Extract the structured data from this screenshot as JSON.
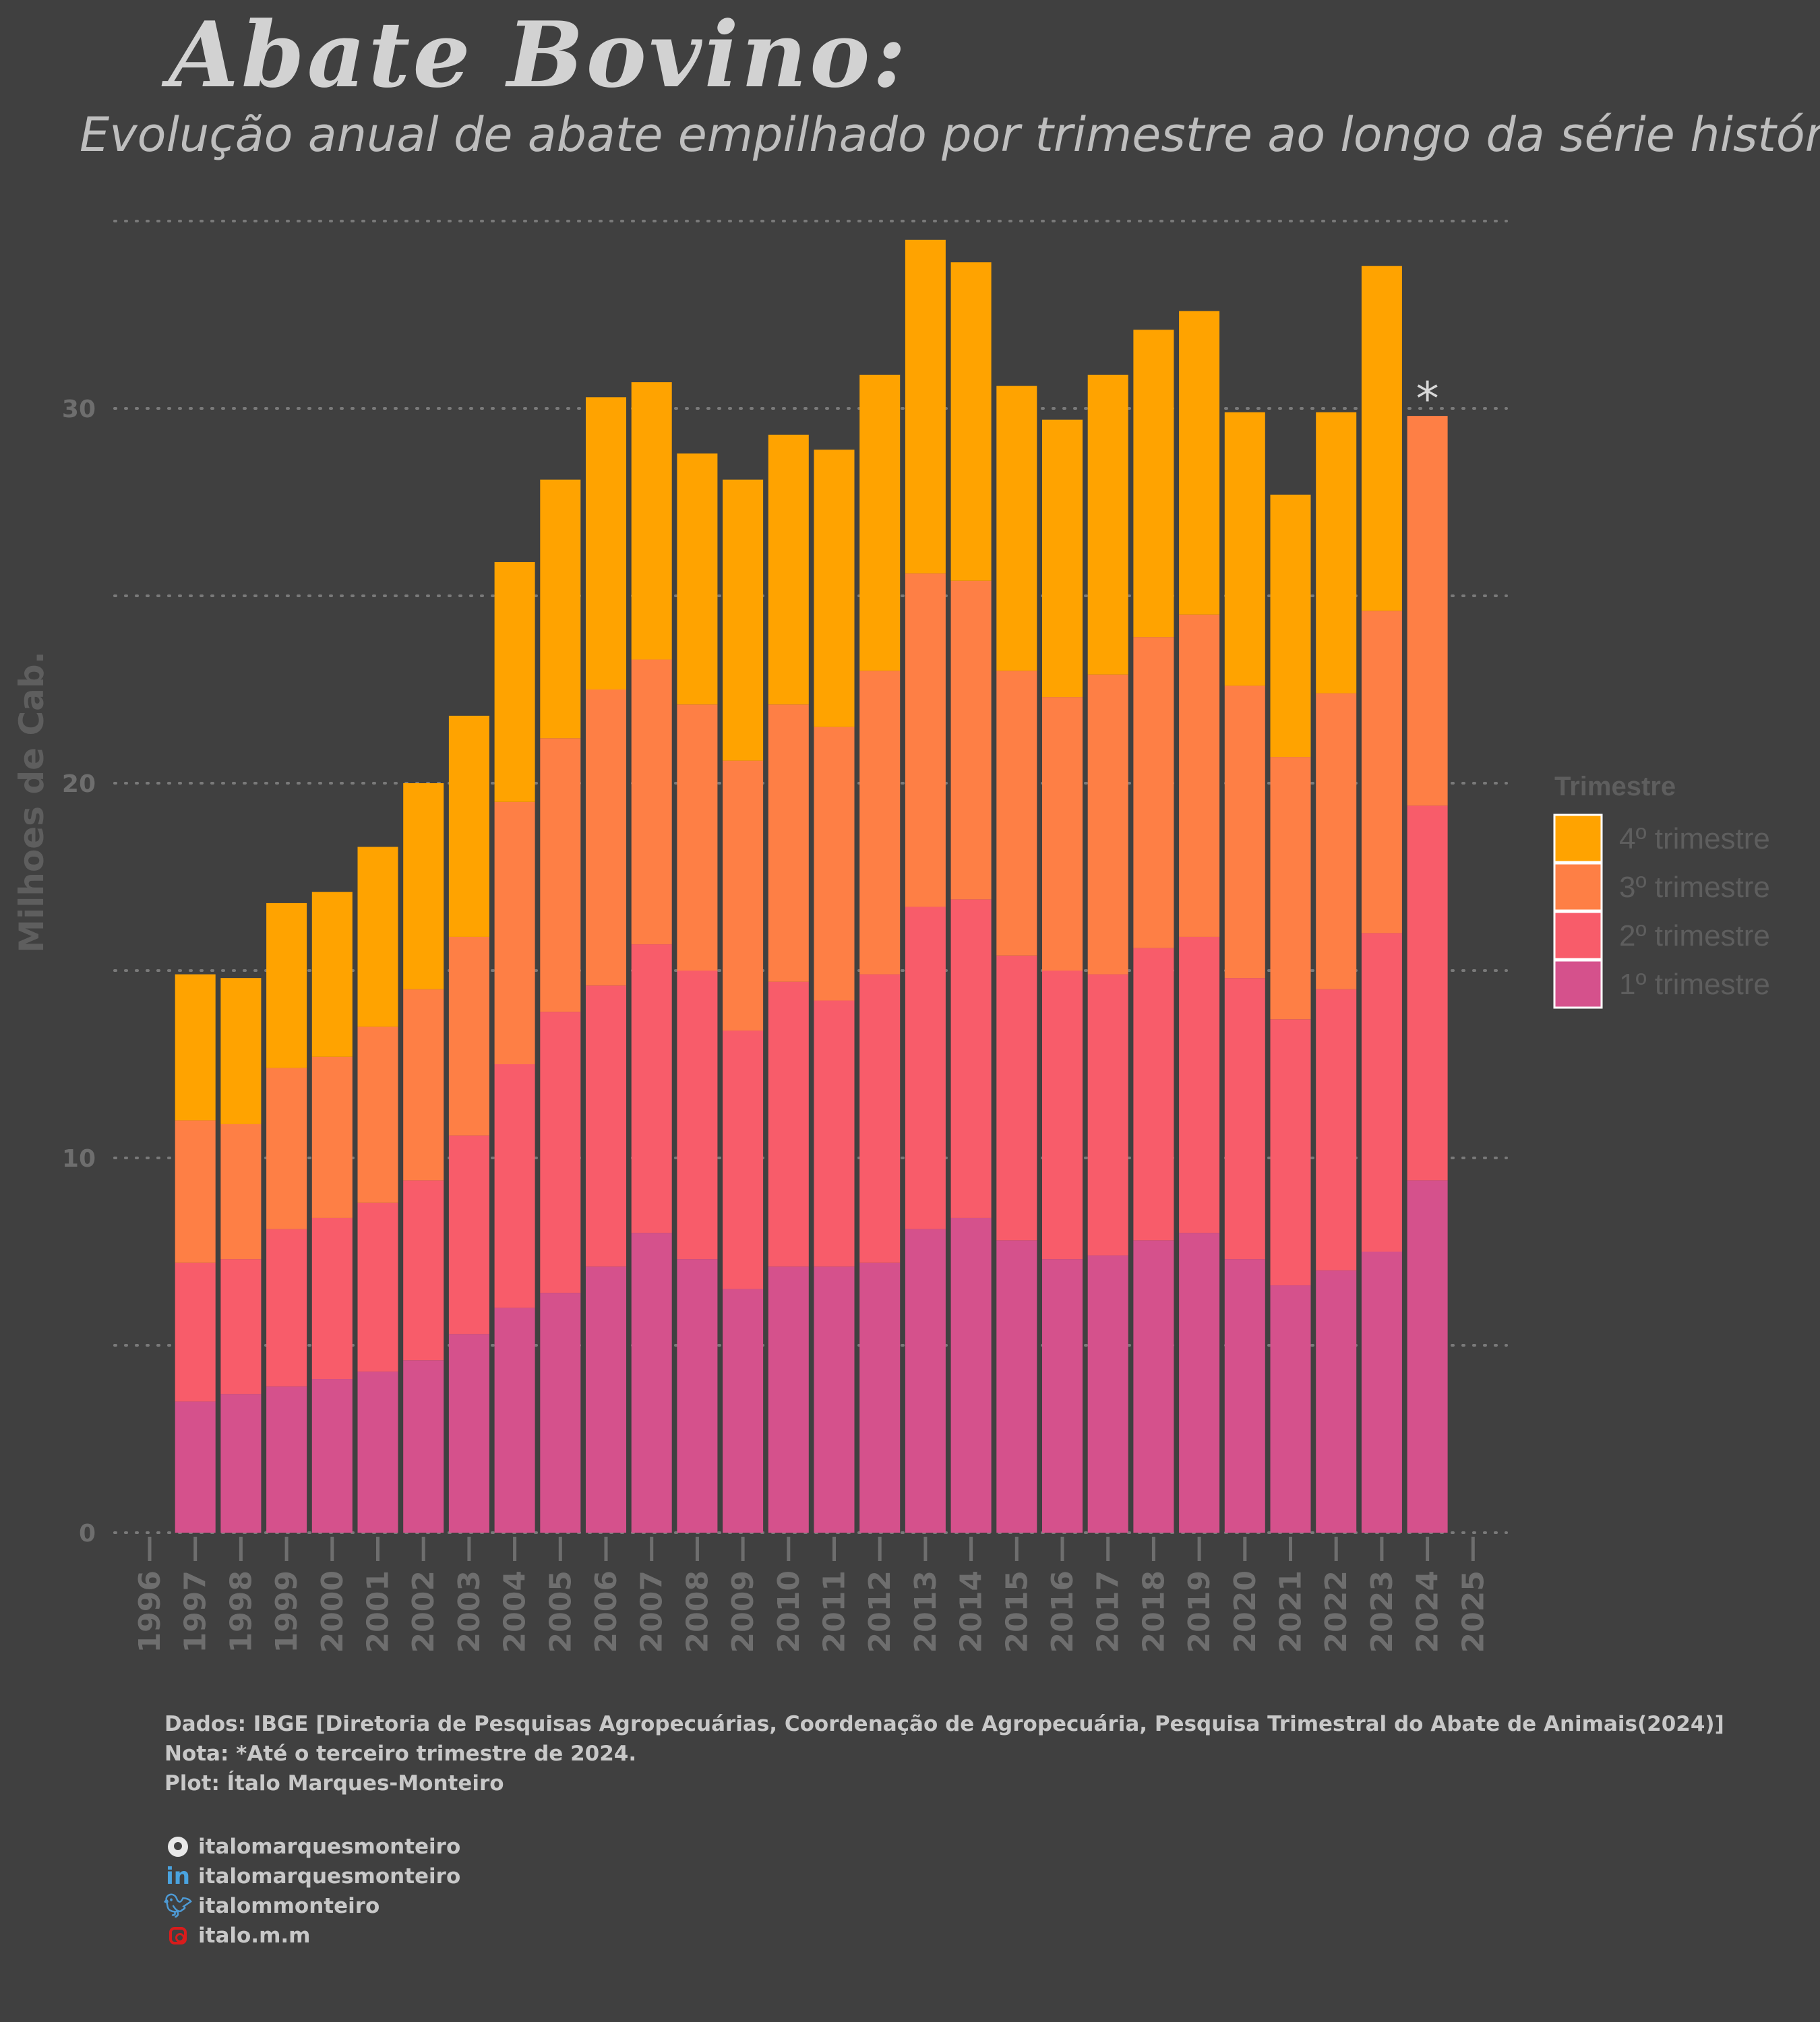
{
  "header": {
    "title": "Abate Bovino:",
    "subtitle": "Evolução anual de abate empilhado por trimestre ao longo da série histórica"
  },
  "chart_data": {
    "type": "bar",
    "stacked": true,
    "ylabel": "Milhoes de Cab.",
    "xlabel": "",
    "ylim": [
      0,
      35
    ],
    "yticks": [
      0,
      10,
      20,
      30
    ],
    "xlim": [
      1996,
      2025
    ],
    "xticks": [
      "1996",
      "1997",
      "1998",
      "1999",
      "2000",
      "2001",
      "2002",
      "2003",
      "2004",
      "2005",
      "2006",
      "2007",
      "2008",
      "2009",
      "2010",
      "2011",
      "2012",
      "2013",
      "2014",
      "2015",
      "2016",
      "2017",
      "2018",
      "2019",
      "2020",
      "2021",
      "2022",
      "2023",
      "2024",
      "2025"
    ],
    "grid": true,
    "legend": {
      "title": "Trimestre",
      "placement": "right"
    },
    "categories": [
      "1997",
      "1998",
      "1999",
      "2000",
      "2001",
      "2002",
      "2003",
      "2004",
      "2005",
      "2006",
      "2007",
      "2008",
      "2009",
      "2010",
      "2011",
      "2012",
      "2013",
      "2014",
      "2015",
      "2016",
      "2017",
      "2018",
      "2019",
      "2020",
      "2021",
      "2022",
      "2023",
      "2024"
    ],
    "series": [
      {
        "name": "1º trimestre",
        "color": "#d5518c",
        "values": [
          3.5,
          3.7,
          3.9,
          4.1,
          4.3,
          4.6,
          5.3,
          6.0,
          6.4,
          7.1,
          8.0,
          7.3,
          6.5,
          7.1,
          7.1,
          7.2,
          8.1,
          8.4,
          7.8,
          7.3,
          7.4,
          7.8,
          8.0,
          7.3,
          6.6,
          7.0,
          7.5,
          9.4
        ]
      },
      {
        "name": "2º trimestre",
        "color": "#f85c6a",
        "values": [
          3.7,
          3.6,
          4.2,
          4.3,
          4.5,
          4.8,
          5.3,
          6.5,
          7.5,
          7.5,
          7.7,
          7.7,
          6.9,
          7.6,
          7.1,
          7.7,
          8.6,
          8.5,
          7.6,
          7.7,
          7.5,
          7.8,
          7.9,
          7.5,
          7.1,
          7.5,
          8.5,
          10.0
        ]
      },
      {
        "name": "3º trimestre",
        "color": "#fe7f45",
        "values": [
          3.8,
          3.6,
          4.3,
          4.3,
          4.7,
          5.1,
          5.3,
          7.0,
          7.3,
          7.9,
          7.6,
          7.1,
          7.2,
          7.4,
          7.3,
          8.1,
          8.9,
          8.5,
          7.6,
          7.3,
          8.0,
          8.3,
          8.6,
          7.8,
          7.0,
          7.9,
          8.6,
          10.4
        ]
      },
      {
        "name": "4º trimestre",
        "color": "#ffa300",
        "values": [
          3.9,
          3.9,
          4.4,
          4.4,
          4.8,
          5.5,
          5.9,
          6.4,
          6.9,
          7.8,
          7.4,
          6.7,
          7.5,
          7.2,
          7.4,
          7.9,
          8.9,
          8.5,
          7.6,
          7.4,
          8.0,
          8.2,
          8.1,
          7.3,
          7.0,
          7.5,
          9.2,
          0
        ]
      }
    ],
    "annotations": [
      {
        "text": "*",
        "x": "2024"
      }
    ]
  },
  "footer": {
    "source": "Dados: IBGE [Diretoria de Pesquisas Agropecuárias, Coordenação de Agropecuária, Pesquisa Trimestral do Abate de Animais(2024)]",
    "note": "Nota: *Até o terceiro trimestre de 2024.",
    "plot": "Plot: Ítalo Marques-Monteiro"
  },
  "social": [
    {
      "icon": "github-icon",
      "handle": "italomarquesmonteiro"
    },
    {
      "icon": "linkedin-icon",
      "handle": "italomarquesmonteiro"
    },
    {
      "icon": "twitter-icon",
      "handle": "italommonteiro"
    },
    {
      "icon": "instagram-icon",
      "handle": "italo.m.m"
    }
  ],
  "colors": {
    "background": "#404040",
    "axis_text": "#6e6e6e",
    "grid": "#7a7a7a"
  }
}
